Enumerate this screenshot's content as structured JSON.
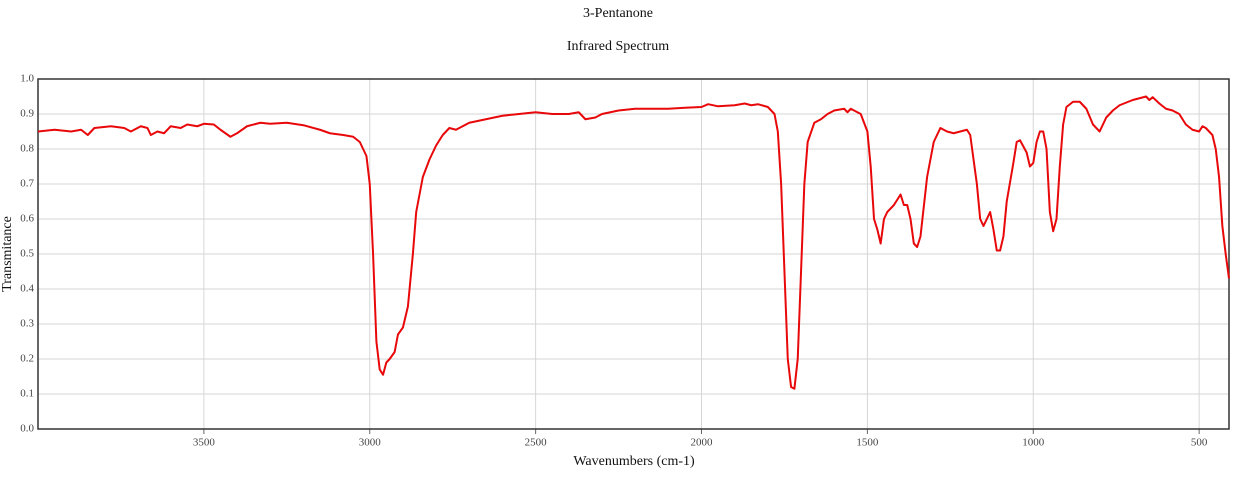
{
  "chart_data": {
    "type": "line",
    "title": "3-Pentanone",
    "subtitle": "Infrared Spectrum",
    "x_label": "Wavenumbers (cm-1)",
    "y_label": "Transmitance",
    "xlim": [
      4000,
      410
    ],
    "ylim": [
      0,
      1
    ],
    "grid": true,
    "xticks": [
      3500,
      3000,
      2500,
      2000,
      1500,
      1000,
      500
    ],
    "yticks": [
      {
        "value": 0,
        "label": "0.0"
      },
      0.1,
      0.2,
      0.3,
      0.4,
      0.5,
      0.6,
      0.7,
      0.8,
      0.9,
      {
        "value": 1,
        "label": "1.0"
      }
    ],
    "x": [
      4000,
      3950,
      3900,
      3870,
      3850,
      3830,
      3780,
      3740,
      3720,
      3690,
      3670,
      3660,
      3640,
      3620,
      3600,
      3570,
      3550,
      3520,
      3500,
      3470,
      3450,
      3420,
      3400,
      3370,
      3330,
      3300,
      3250,
      3200,
      3150,
      3120,
      3080,
      3050,
      3030,
      3010,
      3000,
      2990,
      2980,
      2970,
      2960,
      2950,
      2940,
      2925,
      2915,
      2900,
      2885,
      2870,
      2860,
      2840,
      2820,
      2800,
      2780,
      2760,
      2740,
      2700,
      2650,
      2600,
      2550,
      2500,
      2450,
      2400,
      2370,
      2350,
      2320,
      2300,
      2250,
      2200,
      2150,
      2100,
      2050,
      2000,
      1980,
      1950,
      1900,
      1870,
      1850,
      1830,
      1800,
      1780,
      1770,
      1760,
      1750,
      1740,
      1730,
      1720,
      1710,
      1700,
      1690,
      1680,
      1660,
      1640,
      1620,
      1600,
      1570,
      1560,
      1550,
      1520,
      1500,
      1490,
      1480,
      1470,
      1460,
      1450,
      1440,
      1420,
      1400,
      1390,
      1380,
      1370,
      1360,
      1350,
      1340,
      1320,
      1300,
      1280,
      1260,
      1240,
      1220,
      1200,
      1190,
      1170,
      1160,
      1150,
      1140,
      1130,
      1120,
      1110,
      1100,
      1090,
      1080,
      1060,
      1050,
      1040,
      1020,
      1010,
      1000,
      990,
      980,
      970,
      960,
      950,
      940,
      930,
      920,
      910,
      900,
      880,
      860,
      840,
      820,
      800,
      780,
      760,
      740,
      700,
      680,
      660,
      650,
      640,
      620,
      600,
      580,
      560,
      540,
      520,
      500,
      490,
      480,
      460,
      450,
      440,
      430,
      420,
      410
    ],
    "series": [
      {
        "name": "3-Pentanone",
        "color": "#e8080a",
        "values": [
          0.85,
          0.855,
          0.85,
          0.855,
          0.84,
          0.86,
          0.865,
          0.86,
          0.85,
          0.865,
          0.86,
          0.84,
          0.85,
          0.845,
          0.865,
          0.86,
          0.87,
          0.865,
          0.872,
          0.87,
          0.855,
          0.835,
          0.845,
          0.865,
          0.875,
          0.872,
          0.875,
          0.868,
          0.855,
          0.845,
          0.84,
          0.835,
          0.82,
          0.78,
          0.7,
          0.5,
          0.25,
          0.17,
          0.155,
          0.19,
          0.2,
          0.22,
          0.27,
          0.29,
          0.35,
          0.5,
          0.62,
          0.72,
          0.77,
          0.81,
          0.84,
          0.86,
          0.855,
          0.875,
          0.885,
          0.895,
          0.9,
          0.905,
          0.9,
          0.9,
          0.905,
          0.885,
          0.89,
          0.9,
          0.91,
          0.915,
          0.915,
          0.915,
          0.918,
          0.92,
          0.928,
          0.922,
          0.925,
          0.93,
          0.925,
          0.928,
          0.92,
          0.9,
          0.85,
          0.7,
          0.45,
          0.2,
          0.12,
          0.115,
          0.2,
          0.45,
          0.7,
          0.82,
          0.875,
          0.885,
          0.9,
          0.91,
          0.915,
          0.905,
          0.915,
          0.9,
          0.85,
          0.75,
          0.6,
          0.57,
          0.53,
          0.6,
          0.62,
          0.64,
          0.67,
          0.64,
          0.64,
          0.6,
          0.53,
          0.52,
          0.55,
          0.72,
          0.82,
          0.86,
          0.85,
          0.845,
          0.85,
          0.855,
          0.84,
          0.7,
          0.6,
          0.58,
          0.6,
          0.62,
          0.57,
          0.51,
          0.51,
          0.55,
          0.65,
          0.76,
          0.82,
          0.825,
          0.79,
          0.75,
          0.76,
          0.82,
          0.85,
          0.85,
          0.8,
          0.62,
          0.565,
          0.6,
          0.75,
          0.87,
          0.92,
          0.935,
          0.935,
          0.915,
          0.87,
          0.85,
          0.89,
          0.91,
          0.925,
          0.94,
          0.945,
          0.95,
          0.94,
          0.948,
          0.93,
          0.915,
          0.91,
          0.9,
          0.87,
          0.855,
          0.85,
          0.865,
          0.86,
          0.84,
          0.8,
          0.72,
          0.58,
          0.5,
          0.43
        ]
      }
    ]
  }
}
